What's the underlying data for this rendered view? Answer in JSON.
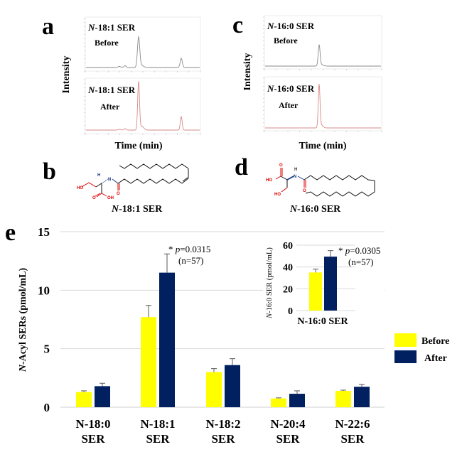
{
  "figure": {
    "panels": {
      "a": {
        "letter": "a",
        "y_label": "Intensity",
        "x_label": "Time (min)",
        "top": {
          "compound_prefix": "N",
          "compound_suffix": "-18:1 SER",
          "condition": "Before",
          "trace_color": "#8a8a8a"
        },
        "bottom": {
          "compound_prefix": "N",
          "compound_suffix": "-18:1 SER",
          "condition": "After",
          "trace_color": "#d9888a"
        }
      },
      "b": {
        "letter": "b",
        "caption_prefix": "N",
        "caption_suffix": "-18:1 SER",
        "atoms": {
          "ho": "HO",
          "oh": "OH",
          "o1": "O",
          "o2": "O",
          "n": "N",
          "h": "H"
        }
      },
      "c": {
        "letter": "c",
        "y_label": "Intensity",
        "x_label": "Time (min)",
        "top": {
          "compound_prefix": "N",
          "compound_suffix": "-16:0 SER",
          "condition": "Before",
          "trace_color": "#8a8a8a"
        },
        "bottom": {
          "compound_prefix": "N",
          "compound_suffix": "-16:0 SER",
          "condition": "After",
          "trace_color": "#d9888a"
        }
      },
      "d": {
        "letter": "d",
        "caption_prefix": "N",
        "caption_suffix": "-16:0 SER",
        "atoms": {
          "ho1": "HO",
          "ho2": "HO",
          "o1": "O",
          "o2": "O",
          "n": "N",
          "h": "H"
        }
      },
      "e": {
        "letter": "e"
      }
    },
    "colors": {
      "before": "#ffff00",
      "after": "#002060",
      "grid": "#d9d9d9",
      "error": "#595959"
    }
  },
  "chart_data": [
    {
      "type": "bar",
      "title": "",
      "xlabel": "",
      "ylabel_prefix": "N",
      "ylabel": "-Acyl SERs   (pmol/mL)",
      "ylim": [
        0,
        15
      ],
      "yticks": [
        0,
        5,
        10,
        15
      ],
      "grid": true,
      "legend_position": "right",
      "categories": [
        [
          "N-18:0",
          "SER"
        ],
        [
          "N-18:1",
          "SER"
        ],
        [
          "N-18:2",
          "SER"
        ],
        [
          "N-20:4",
          "SER"
        ],
        [
          "N-22:6",
          "SER"
        ]
      ],
      "series": [
        {
          "name": "Before",
          "color": "#ffff00",
          "values": [
            1.3,
            7.7,
            3.0,
            0.75,
            1.4
          ],
          "errors": [
            0.1,
            1.0,
            0.3,
            0.05,
            0.06
          ]
        },
        {
          "name": "After",
          "color": "#002060",
          "values": [
            1.8,
            11.5,
            3.6,
            1.15,
            1.75
          ],
          "errors": [
            0.25,
            1.6,
            0.55,
            0.25,
            0.2
          ]
        }
      ],
      "annotations": [
        {
          "category_index": 1,
          "star": "*",
          "p_label": "p",
          "p_value": "=0.0315",
          "n": "(n=57)"
        }
      ]
    },
    {
      "type": "bar",
      "title": "",
      "inset": true,
      "xlabel": "N-16:0 SER",
      "ylabel_prefix": "N",
      "ylabel": "-16:0 SER  (pmol/mL)",
      "ylim": [
        0,
        60
      ],
      "yticks": [
        0,
        20,
        40,
        60
      ],
      "grid": true,
      "categories": [
        "N-16:0 SER"
      ],
      "series": [
        {
          "name": "Before",
          "color": "#ffff00",
          "values": [
            35
          ],
          "errors": [
            3
          ]
        },
        {
          "name": "After",
          "color": "#002060",
          "values": [
            49.5
          ],
          "errors": [
            5.5
          ]
        }
      ],
      "annotations": [
        {
          "category_index": 0,
          "star": "*",
          "p_label": "p",
          "p_value": "=0.0305",
          "n": "(n=57)"
        }
      ]
    }
  ]
}
